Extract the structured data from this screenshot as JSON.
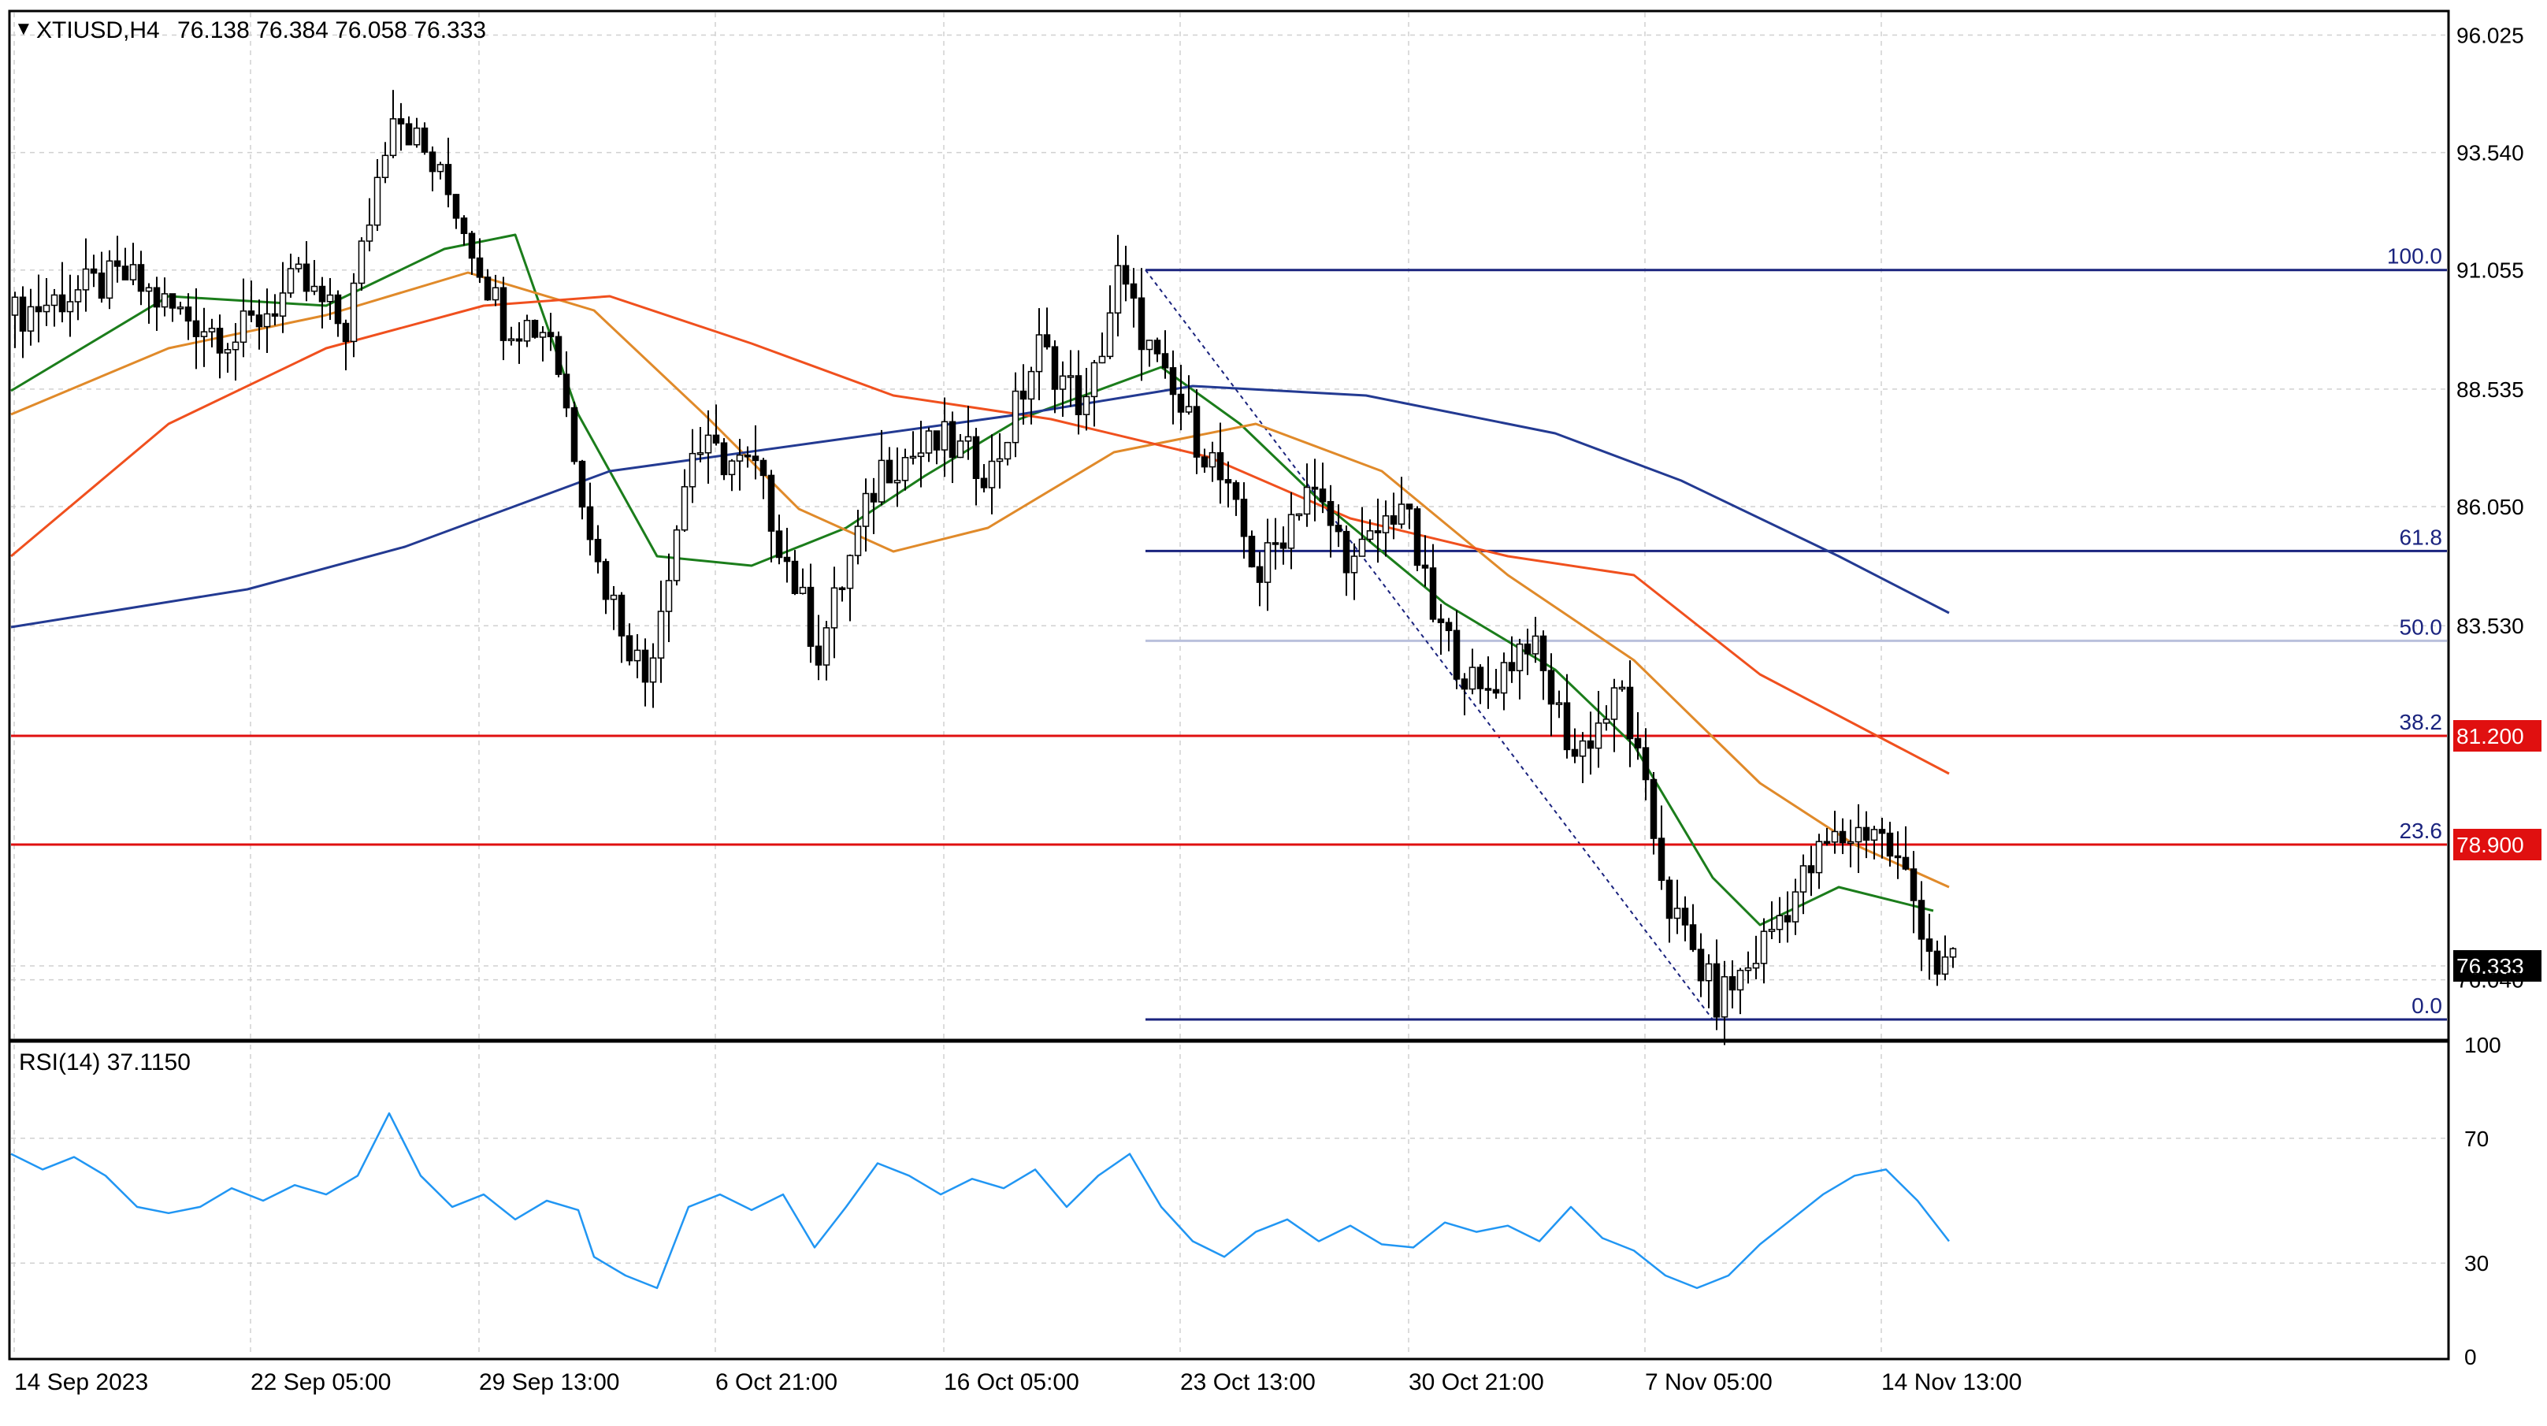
{
  "header": {
    "symbol_label": "XTIUSD,H4",
    "ohlc": "76.138 76.384 76.058 76.333",
    "rsi_label": "RSI(14) 37.1150"
  },
  "colors": {
    "ma_fast": "#1b7d1b",
    "ma_mid": "#e08a2a",
    "ma_slow": "#f0501e",
    "ma_long": "#233a92",
    "candles": "#000000",
    "fib": "#1a237e",
    "fib_50": "#b9c0dc",
    "support_line": "#e01010",
    "rsi": "#2196f3",
    "grid": "#d0d0d0"
  },
  "chart_data": [
    {
      "type": "candlestick",
      "title": "",
      "symbol": "XTIUSD",
      "timeframe": "H4",
      "x_labels": [
        "14 Sep 2023",
        "22 Sep 05:00",
        "29 Sep 13:00",
        "6 Oct 21:00",
        "16 Oct 05:00",
        "23 Oct 13:00",
        "30 Oct 21:00",
        "7 Nov 05:00",
        "14 Nov 13:00"
      ],
      "y_ticks": [
        "96.025",
        "93.540",
        "91.055",
        "88.535",
        "86.050",
        "83.530",
        "81.200",
        "78.900",
        "76.333",
        "76.040"
      ],
      "ylim": [
        74.8,
        96.5
      ],
      "close_path": [
        {
          "bar": 0,
          "close": 90.1
        },
        {
          "bar": 8,
          "close": 90.6
        },
        {
          "bar": 14,
          "close": 90.9
        },
        {
          "bar": 20,
          "close": 90.2
        },
        {
          "bar": 28,
          "close": 89.6
        },
        {
          "bar": 36,
          "close": 90.8
        },
        {
          "bar": 42,
          "close": 89.8
        },
        {
          "bar": 48,
          "close": 94.6
        },
        {
          "bar": 56,
          "close": 92.4
        },
        {
          "bar": 62,
          "close": 90.0
        },
        {
          "bar": 68,
          "close": 89.8
        },
        {
          "bar": 74,
          "close": 84.8
        },
        {
          "bar": 80,
          "close": 82.4
        },
        {
          "bar": 86,
          "close": 87.3
        },
        {
          "bar": 94,
          "close": 86.8
        },
        {
          "bar": 102,
          "close": 83.0
        },
        {
          "bar": 110,
          "close": 86.9
        },
        {
          "bar": 118,
          "close": 87.4
        },
        {
          "bar": 124,
          "close": 86.8
        },
        {
          "bar": 130,
          "close": 89.4
        },
        {
          "bar": 136,
          "close": 88.1
        },
        {
          "bar": 140,
          "close": 90.9
        },
        {
          "bar": 146,
          "close": 88.6
        },
        {
          "bar": 152,
          "close": 87.0
        },
        {
          "bar": 158,
          "close": 84.6
        },
        {
          "bar": 164,
          "close": 86.5
        },
        {
          "bar": 170,
          "close": 84.8
        },
        {
          "bar": 176,
          "close": 86.2
        },
        {
          "bar": 180,
          "close": 83.7
        },
        {
          "bar": 186,
          "close": 82.0
        },
        {
          "bar": 192,
          "close": 83.3
        },
        {
          "bar": 198,
          "close": 80.8
        },
        {
          "bar": 204,
          "close": 82.1
        },
        {
          "bar": 210,
          "close": 77.6
        },
        {
          "bar": 216,
          "close": 75.6
        },
        {
          "bar": 220,
          "close": 76.3
        },
        {
          "bar": 224,
          "close": 77.4
        },
        {
          "bar": 230,
          "close": 78.9
        },
        {
          "bar": 236,
          "close": 79.3
        },
        {
          "bar": 240,
          "close": 78.2
        },
        {
          "bar": 244,
          "close": 76.3
        }
      ],
      "moving_averages": [
        {
          "name": "",
          "color": "#1b7d1b",
          "values": [
            {
              "bar": 0,
              "value": 88.5
            },
            {
              "bar": 20,
              "value": 90.5
            },
            {
              "bar": 40,
              "value": 90.3
            },
            {
              "bar": 55,
              "value": 91.5
            },
            {
              "bar": 64,
              "value": 91.8
            },
            {
              "bar": 72,
              "value": 88.0
            },
            {
              "bar": 82,
              "value": 85.0
            },
            {
              "bar": 94,
              "value": 84.8
            },
            {
              "bar": 106,
              "value": 85.6
            },
            {
              "bar": 116,
              "value": 86.7
            },
            {
              "bar": 128,
              "value": 87.9
            },
            {
              "bar": 146,
              "value": 89.0
            },
            {
              "bar": 156,
              "value": 87.8
            },
            {
              "bar": 166,
              "value": 86.2
            },
            {
              "bar": 182,
              "value": 84.0
            },
            {
              "bar": 196,
              "value": 82.6
            },
            {
              "bar": 206,
              "value": 81.0
            },
            {
              "bar": 216,
              "value": 78.2
            },
            {
              "bar": 222,
              "value": 77.2
            },
            {
              "bar": 232,
              "value": 78.0
            },
            {
              "bar": 244,
              "value": 77.5
            }
          ]
        },
        {
          "name": "",
          "color": "#e08a2a",
          "values": [
            {
              "bar": 0,
              "value": 88.0
            },
            {
              "bar": 20,
              "value": 89.4
            },
            {
              "bar": 40,
              "value": 90.1
            },
            {
              "bar": 58,
              "value": 91.0
            },
            {
              "bar": 74,
              "value": 90.2
            },
            {
              "bar": 88,
              "value": 88.0
            },
            {
              "bar": 100,
              "value": 86.0
            },
            {
              "bar": 112,
              "value": 85.1
            },
            {
              "bar": 124,
              "value": 85.6
            },
            {
              "bar": 140,
              "value": 87.2
            },
            {
              "bar": 158,
              "value": 87.8
            },
            {
              "bar": 174,
              "value": 86.8
            },
            {
              "bar": 190,
              "value": 84.6
            },
            {
              "bar": 206,
              "value": 82.8
            },
            {
              "bar": 222,
              "value": 80.2
            },
            {
              "bar": 234,
              "value": 78.9
            },
            {
              "bar": 246,
              "value": 78.0
            }
          ]
        },
        {
          "name": "",
          "color": "#f0501e",
          "values": [
            {
              "bar": 0,
              "value": 85.0
            },
            {
              "bar": 20,
              "value": 87.8
            },
            {
              "bar": 40,
              "value": 89.4
            },
            {
              "bar": 60,
              "value": 90.3
            },
            {
              "bar": 76,
              "value": 90.5
            },
            {
              "bar": 94,
              "value": 89.5
            },
            {
              "bar": 112,
              "value": 88.4
            },
            {
              "bar": 132,
              "value": 87.9
            },
            {
              "bar": 152,
              "value": 87.1
            },
            {
              "bar": 170,
              "value": 85.8
            },
            {
              "bar": 190,
              "value": 85.0
            },
            {
              "bar": 206,
              "value": 84.6
            },
            {
              "bar": 222,
              "value": 82.5
            },
            {
              "bar": 246,
              "value": 80.4
            }
          ]
        },
        {
          "name": "",
          "color": "#233a92",
          "values": [
            {
              "bar": 0,
              "value": 83.5
            },
            {
              "bar": 30,
              "value": 84.3
            },
            {
              "bar": 50,
              "value": 85.2
            },
            {
              "bar": 76,
              "value": 86.8
            },
            {
              "bar": 102,
              "value": 87.4
            },
            {
              "bar": 128,
              "value": 88.0
            },
            {
              "bar": 150,
              "value": 88.6
            },
            {
              "bar": 172,
              "value": 88.4
            },
            {
              "bar": 196,
              "value": 87.6
            },
            {
              "bar": 212,
              "value": 86.6
            },
            {
              "bar": 232,
              "value": 85.0
            },
            {
              "bar": 246,
              "value": 83.8
            }
          ]
        }
      ],
      "fibonacci": {
        "high": 91.055,
        "low": 75.2,
        "levels": [
          {
            "label": "100.0",
            "value": 91.055
          },
          {
            "label": "61.8",
            "value": 85.11
          },
          {
            "label": "50.0",
            "value": 83.21
          },
          {
            "label": "38.2",
            "value": 81.2
          },
          {
            "label": "23.6",
            "value": 78.9
          },
          {
            "label": "0.0",
            "value": 75.2
          }
        ]
      },
      "horizontal_lines": [
        {
          "label": "81.200",
          "value": 81.2,
          "color": "#e01010"
        },
        {
          "label": "78.900",
          "value": 78.9,
          "color": "#e01010"
        }
      ],
      "current_price": {
        "label": "76.333",
        "value": 76.333
      }
    },
    {
      "type": "line",
      "title": "RSI(14) 37.1150",
      "y_ticks": [
        "100",
        "70",
        "30",
        "0"
      ],
      "ylim": [
        0,
        100
      ],
      "series": [
        {
          "name": "RSI(14)",
          "color": "#2196f3",
          "values": [
            {
              "bar": 0,
              "value": 65
            },
            {
              "bar": 4,
              "value": 60
            },
            {
              "bar": 8,
              "value": 64
            },
            {
              "bar": 12,
              "value": 58
            },
            {
              "bar": 16,
              "value": 48
            },
            {
              "bar": 20,
              "value": 46
            },
            {
              "bar": 24,
              "value": 48
            },
            {
              "bar": 28,
              "value": 54
            },
            {
              "bar": 32,
              "value": 50
            },
            {
              "bar": 36,
              "value": 55
            },
            {
              "bar": 40,
              "value": 52
            },
            {
              "bar": 44,
              "value": 58
            },
            {
              "bar": 48,
              "value": 78
            },
            {
              "bar": 52,
              "value": 58
            },
            {
              "bar": 56,
              "value": 48
            },
            {
              "bar": 60,
              "value": 52
            },
            {
              "bar": 64,
              "value": 44
            },
            {
              "bar": 68,
              "value": 50
            },
            {
              "bar": 72,
              "value": 47
            },
            {
              "bar": 74,
              "value": 32
            },
            {
              "bar": 78,
              "value": 26
            },
            {
              "bar": 82,
              "value": 22
            },
            {
              "bar": 86,
              "value": 48
            },
            {
              "bar": 90,
              "value": 52
            },
            {
              "bar": 94,
              "value": 47
            },
            {
              "bar": 98,
              "value": 52
            },
            {
              "bar": 102,
              "value": 35
            },
            {
              "bar": 106,
              "value": 48
            },
            {
              "bar": 110,
              "value": 62
            },
            {
              "bar": 114,
              "value": 58
            },
            {
              "bar": 118,
              "value": 52
            },
            {
              "bar": 122,
              "value": 57
            },
            {
              "bar": 126,
              "value": 54
            },
            {
              "bar": 130,
              "value": 60
            },
            {
              "bar": 134,
              "value": 48
            },
            {
              "bar": 138,
              "value": 58
            },
            {
              "bar": 142,
              "value": 65
            },
            {
              "bar": 146,
              "value": 48
            },
            {
              "bar": 150,
              "value": 37
            },
            {
              "bar": 154,
              "value": 32
            },
            {
              "bar": 158,
              "value": 40
            },
            {
              "bar": 162,
              "value": 44
            },
            {
              "bar": 166,
              "value": 37
            },
            {
              "bar": 170,
              "value": 42
            },
            {
              "bar": 174,
              "value": 36
            },
            {
              "bar": 178,
              "value": 35
            },
            {
              "bar": 182,
              "value": 43
            },
            {
              "bar": 186,
              "value": 40
            },
            {
              "bar": 190,
              "value": 42
            },
            {
              "bar": 194,
              "value": 37
            },
            {
              "bar": 198,
              "value": 48
            },
            {
              "bar": 202,
              "value": 38
            },
            {
              "bar": 206,
              "value": 34
            },
            {
              "bar": 210,
              "value": 26
            },
            {
              "bar": 214,
              "value": 22
            },
            {
              "bar": 218,
              "value": 26
            },
            {
              "bar": 222,
              "value": 36
            },
            {
              "bar": 226,
              "value": 44
            },
            {
              "bar": 230,
              "value": 52
            },
            {
              "bar": 234,
              "value": 58
            },
            {
              "bar": 238,
              "value": 60
            },
            {
              "bar": 242,
              "value": 50
            },
            {
              "bar": 246,
              "value": 37
            }
          ]
        }
      ]
    }
  ]
}
